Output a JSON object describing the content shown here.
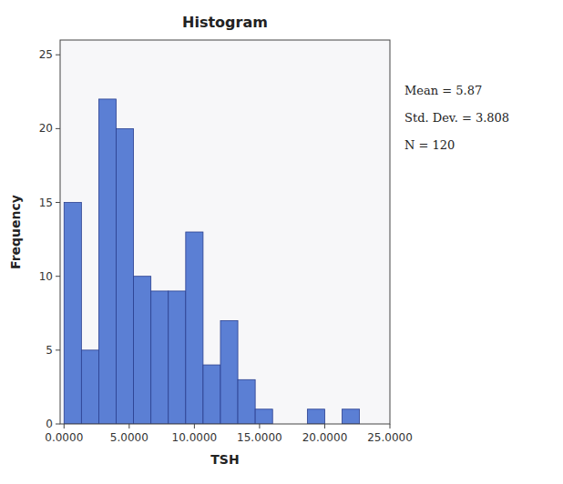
{
  "chart_data": {
    "type": "histogram",
    "title": "Histogram",
    "x_label": "TSH",
    "y_label": "Frequency",
    "bin_left_edges": [
      0.0,
      1.333,
      2.667,
      4.0,
      5.333,
      6.667,
      8.0,
      9.333,
      10.667,
      12.0,
      13.333,
      14.667,
      16.0,
      18.667,
      21.333
    ],
    "bin_width": 1.333,
    "values": [
      15,
      5,
      22,
      20,
      10,
      9,
      9,
      13,
      4,
      7,
      3,
      1,
      0,
      1,
      1
    ],
    "color": "#5b7fd4",
    "xlim": [
      -0.3,
      25
    ],
    "xticks": [
      {
        "value": 0.0,
        "label": "0.0000"
      },
      {
        "value": 5.0,
        "label": "5.0000"
      },
      {
        "value": 10.0,
        "label": "10.0000"
      },
      {
        "value": 15.0,
        "label": "15.0000"
      },
      {
        "value": 20.0,
        "label": "20.0000"
      },
      {
        "value": 25,
        "label": "25.0000"
      }
    ],
    "ylim": [
      0,
      26
    ],
    "yticks": [
      0,
      5,
      10,
      15,
      20,
      25
    ],
    "annotations": [
      "Mean = 5.87",
      "Std. Dev. = 3.808",
      "N = 120"
    ],
    "grid": false
  }
}
